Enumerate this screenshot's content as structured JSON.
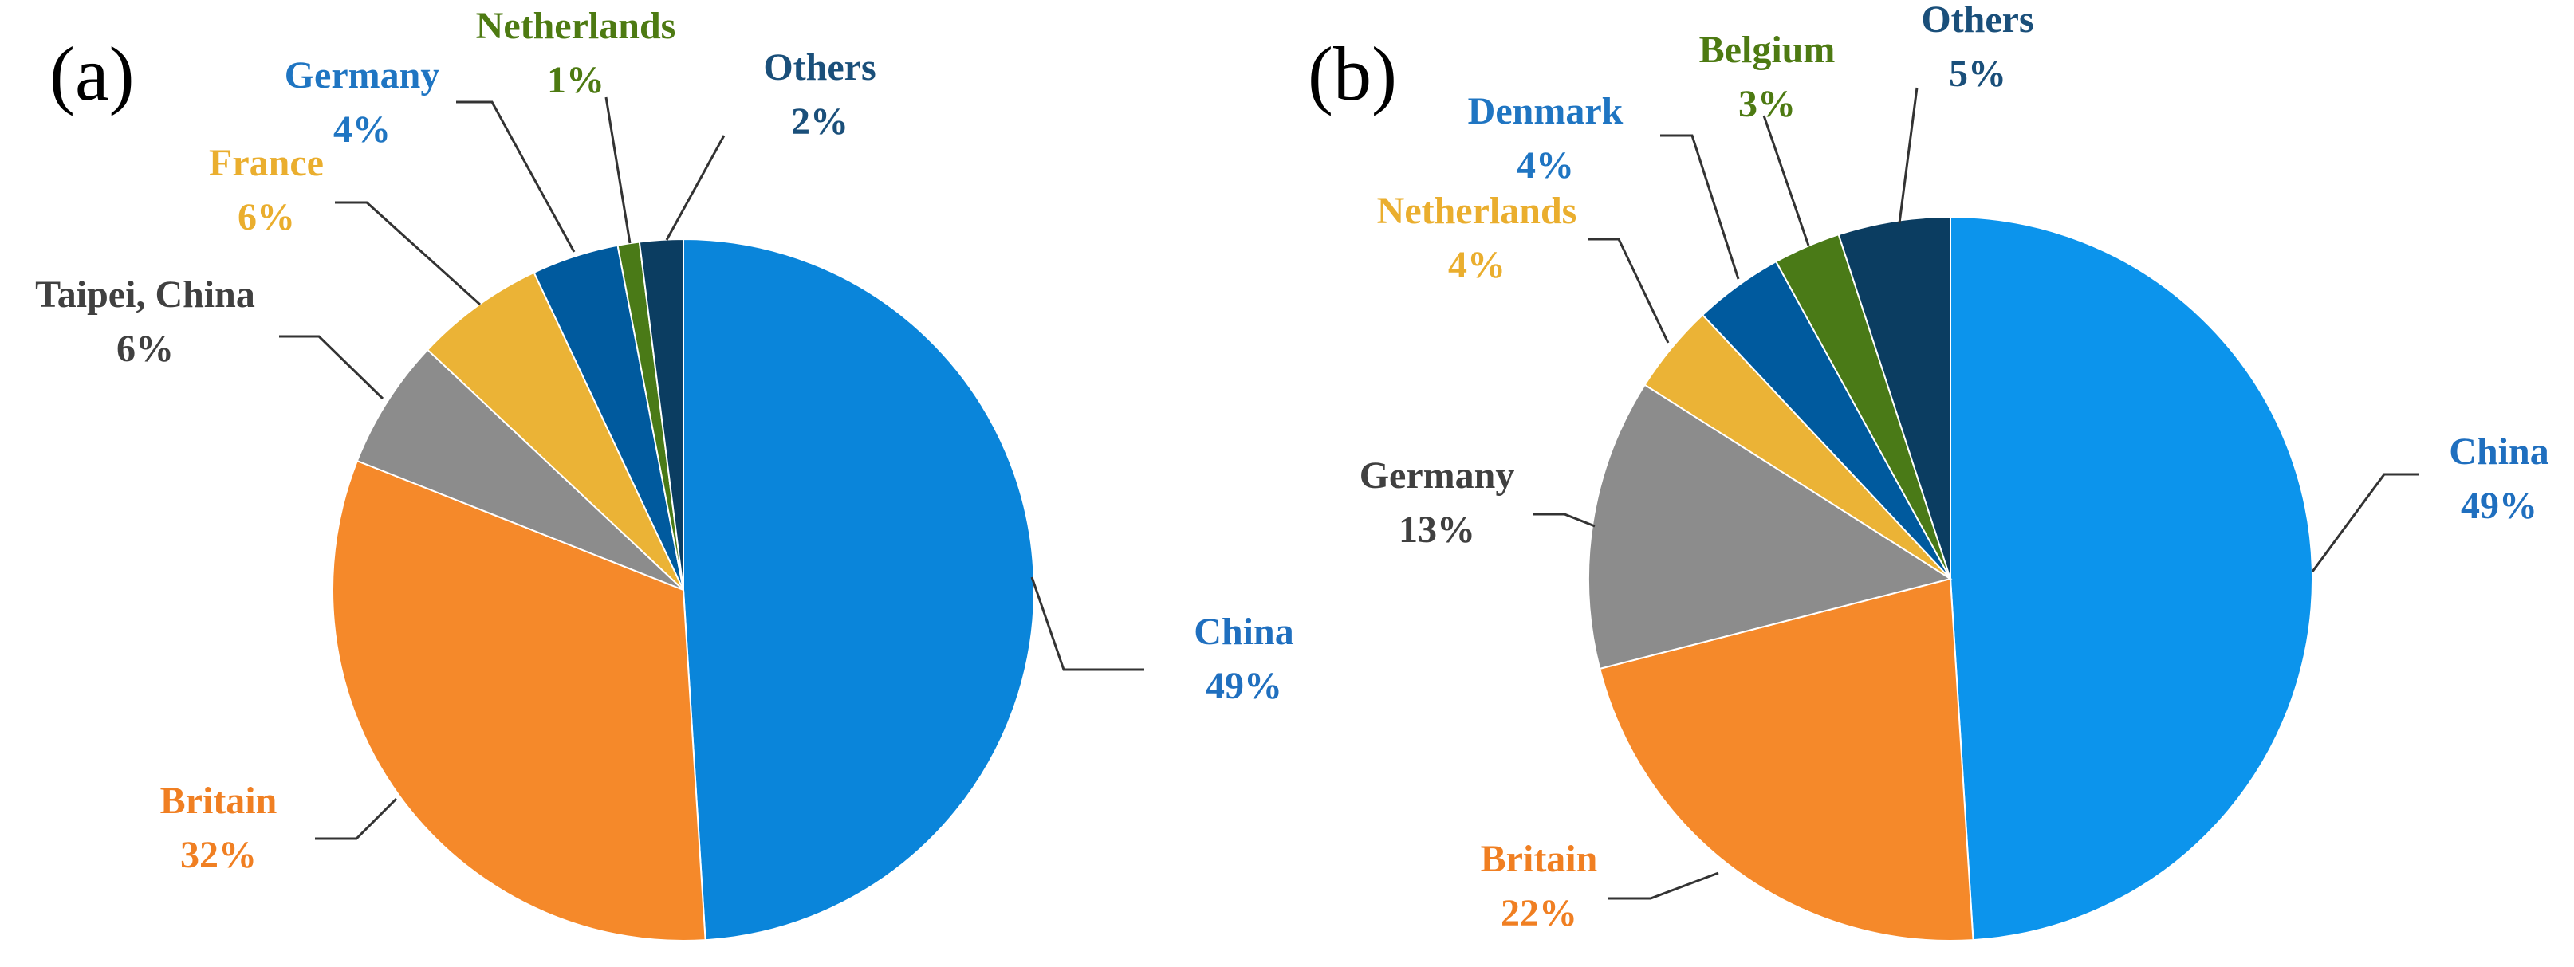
{
  "chart_data": [
    {
      "type": "pie",
      "panel_label": "(a)",
      "title": "",
      "slices": [
        {
          "label": "China",
          "value": 49,
          "value_label": "49%",
          "color": "#0A85DA",
          "label_color": "#1F6FBF"
        },
        {
          "label": "Britain",
          "value": 32,
          "value_label": "32%",
          "color": "#F5892A",
          "label_color": "#F07F22"
        },
        {
          "label": "Taipei, China",
          "value": 6,
          "value_label": "6%",
          "color": "#8C8C8C",
          "label_color": "#404040"
        },
        {
          "label": "France",
          "value": 6,
          "value_label": "6%",
          "color": "#EBB336",
          "label_color": "#EAAE2E"
        },
        {
          "label": "Germany",
          "value": 4,
          "value_label": "4%",
          "color": "#005A9E",
          "label_color": "#1F75C2"
        },
        {
          "label": "Netherlands",
          "value": 1,
          "value_label": "1%",
          "color": "#4A7A17",
          "label_color": "#4D7A12"
        },
        {
          "label": "Others",
          "value": 2,
          "value_label": "2%",
          "color": "#0B3D61",
          "label_color": "#1A4F7A"
        }
      ]
    },
    {
      "type": "pie",
      "panel_label": "(b)",
      "title": "",
      "slices": [
        {
          "label": "China",
          "value": 49,
          "value_label": "49%",
          "color": "#0C94EC",
          "label_color": "#1F6FBF"
        },
        {
          "label": "Britain",
          "value": 22,
          "value_label": "22%",
          "color": "#F5892A",
          "label_color": "#F07F22"
        },
        {
          "label": "Germany",
          "value": 13,
          "value_label": "13%",
          "color": "#8C8C8C",
          "label_color": "#404040"
        },
        {
          "label": "Netherlands",
          "value": 4,
          "value_label": "4%",
          "color": "#EBB336",
          "label_color": "#EAAE2E"
        },
        {
          "label": "Denmark",
          "value": 4,
          "value_label": "4%",
          "color": "#005A9E",
          "label_color": "#1F75C2"
        },
        {
          "label": "Belgium",
          "value": 3,
          "value_label": "3%",
          "color": "#4A7A17",
          "label_color": "#4D7A12"
        },
        {
          "label": "Others",
          "value": 5,
          "value_label": "5%",
          "color": "#0B3D61",
          "label_color": "#1A4F7A"
        }
      ]
    }
  ]
}
